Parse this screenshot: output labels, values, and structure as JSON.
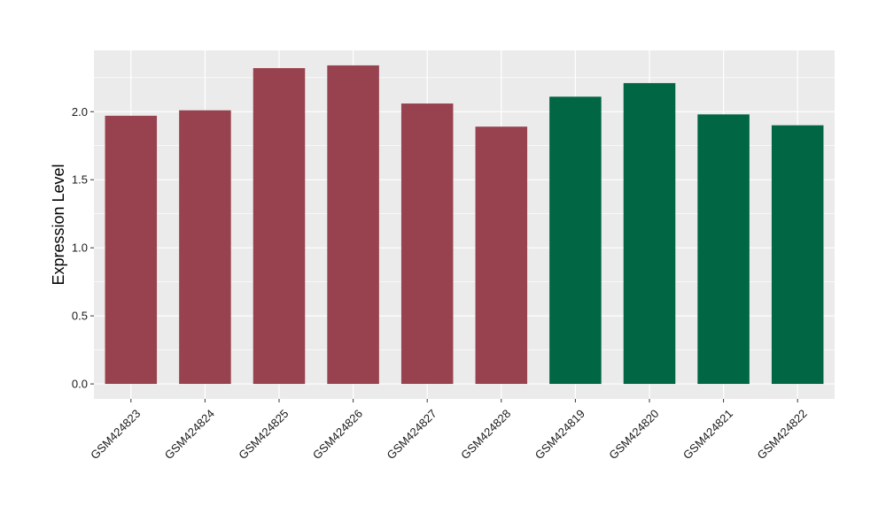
{
  "chart_data": {
    "type": "bar",
    "title": "",
    "xlabel": "",
    "ylabel": "Expression Level",
    "categories": [
      "GSM424823",
      "GSM424824",
      "GSM424825",
      "GSM424826",
      "GSM424827",
      "GSM424828",
      "GSM424819",
      "GSM424820",
      "GSM424821",
      "GSM424822"
    ],
    "values": [
      1.97,
      2.01,
      2.32,
      2.34,
      2.06,
      1.89,
      2.11,
      2.21,
      1.98,
      1.9
    ],
    "bar_colors": [
      "#98424f",
      "#98424f",
      "#98424f",
      "#98424f",
      "#98424f",
      "#98424f",
      "#006644",
      "#006644",
      "#006644",
      "#006644"
    ],
    "ylim": [
      -0.11,
      2.45
    ],
    "yticks": [
      0.0,
      0.5,
      1.0,
      1.5,
      2.0
    ],
    "ytick_labels": [
      "0.0",
      "0.5",
      "1.0",
      "1.5",
      "2.0"
    ],
    "grid": true,
    "background_color": "#ebebeb",
    "grid_color": "#ffffff"
  }
}
